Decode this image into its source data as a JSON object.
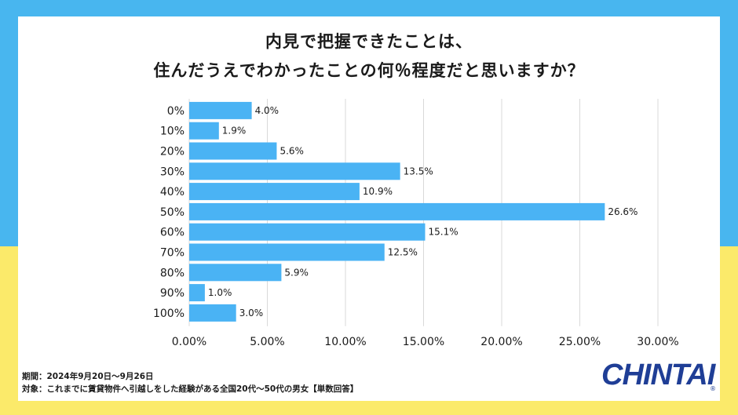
{
  "title_line1": "内見で把握できたことは、",
  "title_line2": "住んだうえでわかったことの何％程度だと思いますか？",
  "chart_data": {
    "type": "bar",
    "orientation": "horizontal",
    "categories": [
      "0%",
      "10%",
      "20%",
      "30%",
      "40%",
      "50%",
      "60%",
      "70%",
      "80%",
      "90%",
      "100%"
    ],
    "values": [
      4.0,
      1.9,
      5.6,
      13.5,
      10.9,
      26.6,
      15.1,
      12.5,
      5.9,
      1.0,
      3.0
    ],
    "data_labels": [
      "4.0%",
      "1.9%",
      "5.6%",
      "13.5%",
      "10.9%",
      "26.6%",
      "15.1%",
      "12.5%",
      "5.9%",
      "1.0%",
      "3.0%"
    ],
    "xlim": [
      0,
      30
    ],
    "x_ticks": [
      0,
      5,
      10,
      15,
      20,
      25,
      30
    ],
    "x_tick_labels": [
      "0.00%",
      "5.00%",
      "10.00%",
      "15.00%",
      "20.00%",
      "25.00%",
      "30.00%"
    ],
    "grid": true,
    "bar_color": "#4ab3f4"
  },
  "notes": {
    "period": "期間：2024年9月20日〜9月26日",
    "target": "対象：これまでに賃貸物件へ引越しをした経験がある全国20代〜50代の男女【単数回答】"
  },
  "brand": {
    "logo_text": "CHINTAI",
    "color": "#1f3e96"
  }
}
